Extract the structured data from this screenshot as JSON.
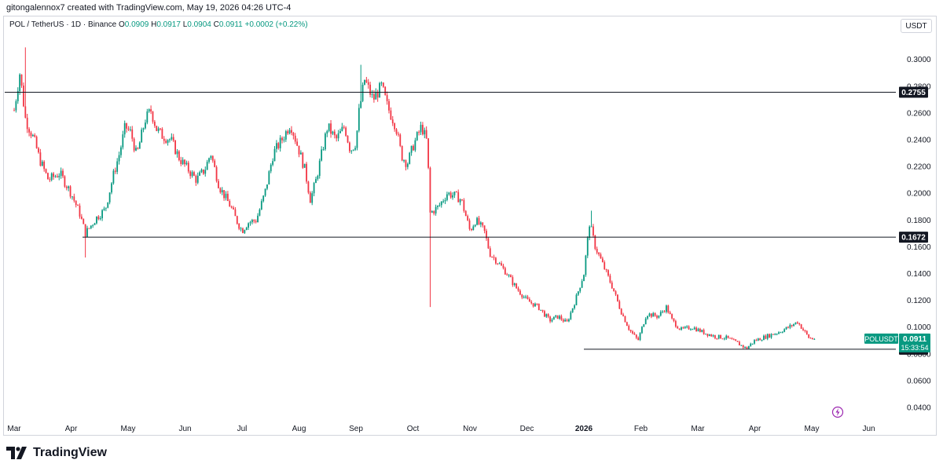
{
  "header": {
    "attribution": "gitongalennox7 created with TradingView.com, May 19, 2026 04:26 UTC-4"
  },
  "legend": {
    "symbol": "POL / TetherUS · 1D · Binance",
    "o_label": "O",
    "o_value": "0.0909",
    "h_label": "H",
    "h_value": "0.0917",
    "l_label": "L",
    "l_value": "0.0904",
    "c_label": "C",
    "c_value": "0.0911",
    "change": "+0.0002 (+0.22%)"
  },
  "currency": "USDT",
  "footer": {
    "brand": "TradingView"
  },
  "colors": {
    "up": "#089981",
    "down": "#f23645",
    "line": "#131722",
    "label_bg": "#131722",
    "price_tag": "#089981"
  },
  "chart_data": {
    "type": "candlestick",
    "symbol": "POLUSDT",
    "interval": "1D",
    "x_tick_labels": [
      "Mar",
      "Apr",
      "May",
      "Jun",
      "Jul",
      "Aug",
      "Sep",
      "Oct",
      "Nov",
      "Dec",
      "2026",
      "Feb",
      "Mar",
      "Apr",
      "May",
      "Jun"
    ],
    "y_ticks": [
      0.04,
      0.06,
      0.08,
      0.1,
      0.12,
      0.14,
      0.16,
      0.18,
      0.2,
      0.22,
      0.24,
      0.26,
      0.28,
      0.3
    ],
    "y_tick_labels": [
      "0.0400",
      "0.0600",
      "0.0800",
      "0.1000",
      "0.1200",
      "0.1400",
      "0.1600",
      "0.1800",
      "0.2000",
      "0.2200",
      "0.2400",
      "0.2600",
      "0.2800",
      "0.3000"
    ],
    "ylim": [
      0.0325,
      0.31
    ],
    "horizontal_levels": [
      {
        "value": 0.2755,
        "label": "0.2755",
        "start_month": 0
      },
      {
        "value": 0.1672,
        "label": "0.1672",
        "start_month": 1.2
      },
      {
        "value": 0.0835,
        "label": "0.0835",
        "start_month": 10.0
      }
    ],
    "last_price": {
      "symbol": "POLUSDT",
      "value": 0.0911,
      "label": "0.0911",
      "countdown": "15:33:54"
    },
    "close_path": [
      [
        0,
        0.262
      ],
      [
        0.1,
        0.29
      ],
      [
        0.2,
        0.255
      ],
      [
        0.35,
        0.24
      ],
      [
        0.45,
        0.225
      ],
      [
        0.6,
        0.21
      ],
      [
        0.8,
        0.215
      ],
      [
        1.0,
        0.2
      ],
      [
        1.15,
        0.185
      ],
      [
        1.25,
        0.17
      ],
      [
        1.45,
        0.182
      ],
      [
        1.6,
        0.188
      ],
      [
        1.75,
        0.215
      ],
      [
        1.85,
        0.23
      ],
      [
        1.95,
        0.25
      ],
      [
        2.05,
        0.245
      ],
      [
        2.15,
        0.228
      ],
      [
        2.3,
        0.255
      ],
      [
        2.4,
        0.262
      ],
      [
        2.5,
        0.248
      ],
      [
        2.6,
        0.243
      ],
      [
        2.75,
        0.24
      ],
      [
        2.9,
        0.226
      ],
      [
        3.05,
        0.218
      ],
      [
        3.2,
        0.21
      ],
      [
        3.35,
        0.218
      ],
      [
        3.45,
        0.23
      ],
      [
        3.6,
        0.205
      ],
      [
        3.8,
        0.19
      ],
      [
        3.9,
        0.18
      ],
      [
        4.0,
        0.172
      ],
      [
        4.1,
        0.178
      ],
      [
        4.25,
        0.18
      ],
      [
        4.4,
        0.2
      ],
      [
        4.55,
        0.23
      ],
      [
        4.7,
        0.24
      ],
      [
        4.85,
        0.252
      ],
      [
        5.0,
        0.232
      ],
      [
        5.1,
        0.218
      ],
      [
        5.2,
        0.195
      ],
      [
        5.3,
        0.21
      ],
      [
        5.5,
        0.25
      ],
      [
        5.65,
        0.24
      ],
      [
        5.8,
        0.25
      ],
      [
        5.9,
        0.232
      ],
      [
        6.0,
        0.238
      ],
      [
        6.05,
        0.26
      ],
      [
        6.15,
        0.285
      ],
      [
        6.3,
        0.27
      ],
      [
        6.45,
        0.28
      ],
      [
        6.55,
        0.265
      ],
      [
        6.7,
        0.25
      ],
      [
        6.8,
        0.228
      ],
      [
        6.9,
        0.222
      ],
      [
        7.0,
        0.235
      ],
      [
        7.15,
        0.25
      ],
      [
        7.25,
        0.238
      ],
      [
        7.3,
        0.185
      ],
      [
        7.45,
        0.19
      ],
      [
        7.6,
        0.2
      ],
      [
        7.75,
        0.198
      ],
      [
        7.85,
        0.195
      ],
      [
        8.0,
        0.172
      ],
      [
        8.1,
        0.18
      ],
      [
        8.25,
        0.172
      ],
      [
        8.35,
        0.155
      ],
      [
        8.5,
        0.148
      ],
      [
        8.65,
        0.14
      ],
      [
        8.8,
        0.13
      ],
      [
        9.0,
        0.12
      ],
      [
        9.2,
        0.115
      ],
      [
        9.4,
        0.105
      ],
      [
        9.55,
        0.108
      ],
      [
        9.7,
        0.103
      ],
      [
        9.85,
        0.12
      ],
      [
        10.0,
        0.14
      ],
      [
        10.1,
        0.178
      ],
      [
        10.2,
        0.16
      ],
      [
        10.35,
        0.145
      ],
      [
        10.5,
        0.13
      ],
      [
        10.65,
        0.112
      ],
      [
        10.8,
        0.098
      ],
      [
        10.95,
        0.09
      ],
      [
        11.1,
        0.11
      ],
      [
        11.3,
        0.108
      ],
      [
        11.45,
        0.115
      ],
      [
        11.55,
        0.105
      ],
      [
        11.7,
        0.098
      ],
      [
        11.9,
        0.1
      ],
      [
        12.1,
        0.096
      ],
      [
        12.3,
        0.093
      ],
      [
        12.5,
        0.092
      ],
      [
        12.7,
        0.088
      ],
      [
        12.85,
        0.084
      ],
      [
        13.0,
        0.09
      ],
      [
        13.2,
        0.093
      ],
      [
        13.4,
        0.096
      ],
      [
        13.6,
        0.1
      ],
      [
        13.75,
        0.104
      ],
      [
        13.85,
        0.098
      ],
      [
        13.95,
        0.092
      ],
      [
        14.05,
        0.0911
      ]
    ],
    "notable_wicks": [
      {
        "month": 0.2,
        "high": 0.309
      },
      {
        "month": 1.25,
        "low": 0.152
      },
      {
        "month": 6.1,
        "high": 0.296
      },
      {
        "month": 7.3,
        "low": 0.115
      },
      {
        "month": 10.12,
        "high": 0.187
      }
    ]
  }
}
